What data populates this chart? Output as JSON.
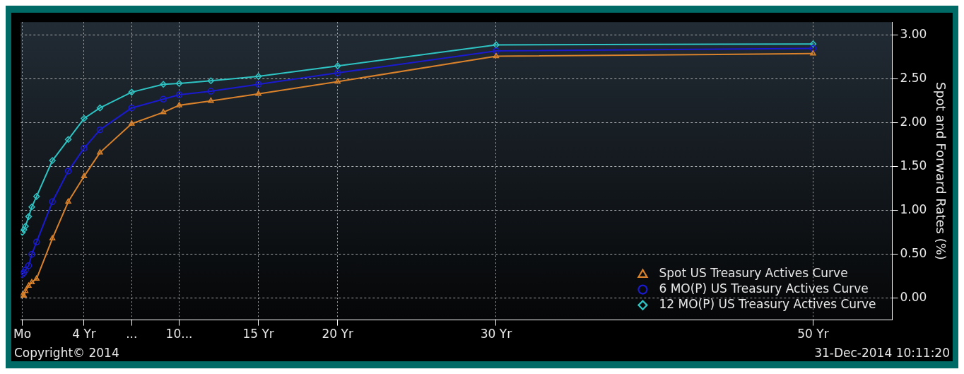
{
  "chart_data": {
    "type": "line",
    "ylabel": "Spot and Forward Rates (%)",
    "x": [
      0.1,
      0.2,
      0.3,
      0.5,
      0.7,
      1,
      2,
      3,
      4,
      5,
      7,
      9,
      10,
      12,
      15,
      20,
      30,
      50
    ],
    "xlim": [
      0,
      55
    ],
    "xticks": [
      {
        "value": 0.1,
        "label": "Mo"
      },
      {
        "value": 4,
        "label": "4 Yr"
      },
      {
        "value": 7,
        "label": "..."
      },
      {
        "value": 10,
        "label": "10..."
      },
      {
        "value": 15,
        "label": "15 Yr"
      },
      {
        "value": 20,
        "label": "20 Yr"
      },
      {
        "value": 30,
        "label": "30 Yr"
      },
      {
        "value": 50,
        "label": "50 Yr"
      }
    ],
    "ylim": [
      -0.25,
      3.15
    ],
    "yticks": [
      {
        "value": 0,
        "label": "0.00"
      },
      {
        "value": 0.5,
        "label": "0.50"
      },
      {
        "value": 1,
        "label": "1.00"
      },
      {
        "value": 1.5,
        "label": "1.50"
      },
      {
        "value": 2,
        "label": "2.00"
      },
      {
        "value": 2.5,
        "label": "2.50"
      },
      {
        "value": 3,
        "label": "3.00"
      }
    ],
    "series": [
      {
        "name": "Spot US Treasury Actives Curve",
        "color": "#d9822b",
        "marker": "triangle",
        "values": [
          0.03,
          0.03,
          0.08,
          0.14,
          0.18,
          0.22,
          0.68,
          1.1,
          1.39,
          1.66,
          1.99,
          2.12,
          2.2,
          2.25,
          2.33,
          2.47,
          2.76,
          2.79
        ]
      },
      {
        "name": "6 MO(P) US Treasury Actives Curve",
        "color": "#1a1ad0",
        "marker": "circle",
        "values": [
          0.27,
          0.29,
          0.32,
          0.37,
          0.5,
          0.64,
          1.1,
          1.45,
          1.71,
          1.92,
          2.17,
          2.27,
          2.32,
          2.36,
          2.44,
          2.57,
          2.82,
          2.85
        ]
      },
      {
        "name": "12 MO(P) US Treasury Actives Curve",
        "color": "#2ec4c4",
        "marker": "diamond",
        "values": [
          0.75,
          0.78,
          0.82,
          0.93,
          1.04,
          1.16,
          1.57,
          1.81,
          2.05,
          2.17,
          2.35,
          2.44,
          2.45,
          2.48,
          2.53,
          2.65,
          2.89,
          2.9
        ]
      }
    ],
    "grid": true,
    "line_style": "solid",
    "legend": "bottom right",
    "annotations": [
      "Copyright© 2014",
      "31-Dec-2014 10:11:20"
    ]
  }
}
